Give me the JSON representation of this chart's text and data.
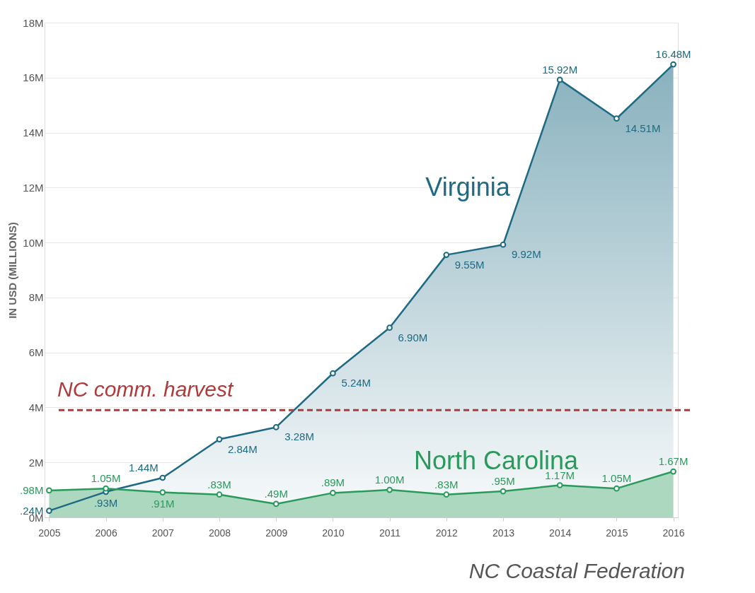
{
  "chart_data": {
    "type": "area",
    "ylabel": "IN USD (MILLIONS)",
    "categories": [
      "2005",
      "2006",
      "2007",
      "2008",
      "2009",
      "2010",
      "2011",
      "2012",
      "2013",
      "2014",
      "2015",
      "2016"
    ],
    "series": [
      {
        "name": "Virginia",
        "color": "#1d6a82",
        "values": [
          0.24,
          0.93,
          1.44,
          2.84,
          3.28,
          5.24,
          6.9,
          9.55,
          9.92,
          15.92,
          14.51,
          16.48
        ],
        "value_labels": [
          ".24M",
          ".93M",
          "1.44M",
          "2.84M",
          "3.28M",
          "5.24M",
          "6.90M",
          "9.55M",
          "9.92M",
          "15.92M",
          "14.51M",
          "16.48M"
        ]
      },
      {
        "name": "North Carolina",
        "color": "#2a9a5c",
        "values": [
          0.98,
          1.05,
          0.91,
          0.83,
          0.49,
          0.89,
          1.0,
          0.83,
          0.95,
          1.17,
          1.05,
          1.67
        ],
        "value_labels": [
          ".98M",
          "1.05M",
          ".91M",
          ".83M",
          ".49M",
          ".89M",
          "1.00M",
          ".83M",
          ".95M",
          "1.17M",
          "1.05M",
          "1.67M"
        ]
      }
    ],
    "ylim": [
      0,
      18
    ],
    "yticks": [
      {
        "value": 0,
        "label": "0M"
      },
      {
        "value": 2,
        "label": "2M"
      },
      {
        "value": 4,
        "label": "4M"
      },
      {
        "value": 6,
        "label": "6M"
      },
      {
        "value": 8,
        "label": "8M"
      },
      {
        "value": 10,
        "label": "10M"
      },
      {
        "value": 12,
        "label": "12M"
      },
      {
        "value": 14,
        "label": "14M"
      },
      {
        "value": 16,
        "label": "16M"
      },
      {
        "value": 18,
        "label": "18M"
      }
    ],
    "ref_lines": [
      {
        "axis": "y",
        "value": 3.9,
        "label": "NC comm. harvest",
        "color": "#b03a3a",
        "line_style": "dashed"
      }
    ],
    "annotations": [
      "NC Coastal Federation"
    ],
    "grid": "y",
    "marker": "circle",
    "line_style": "solid",
    "legend": false
  }
}
